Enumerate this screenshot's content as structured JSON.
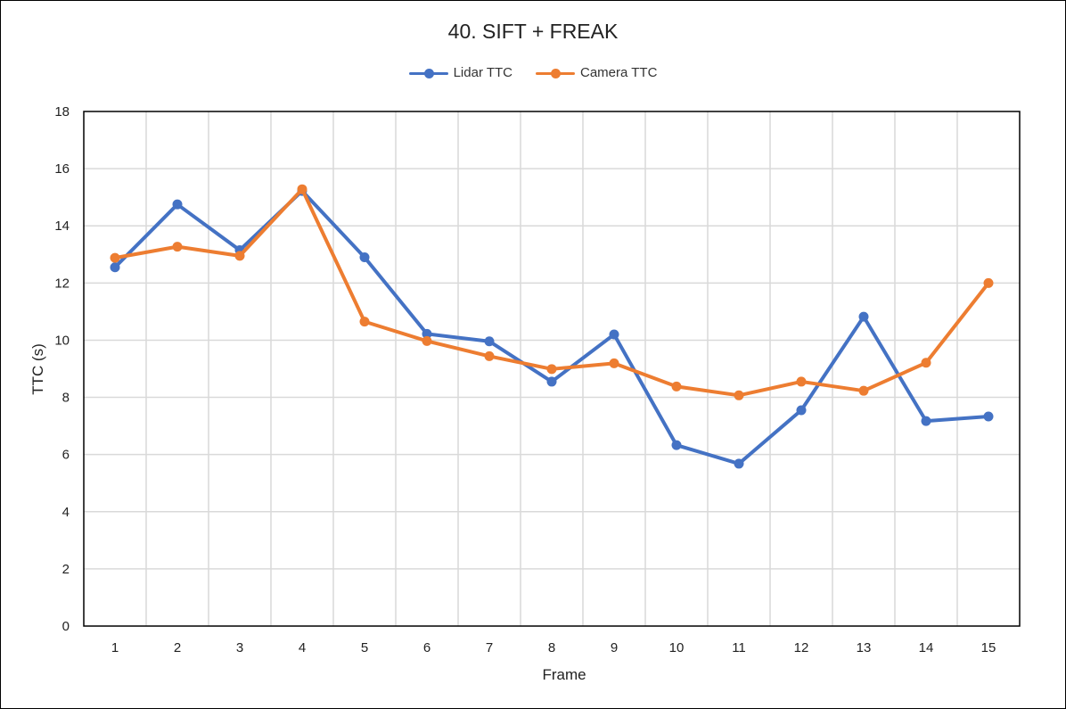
{
  "chart_data": {
    "type": "line",
    "title": "40. SIFT + FREAK",
    "xlabel": "Frame",
    "ylabel": "TTC (s)",
    "categories": [
      "1",
      "2",
      "3",
      "4",
      "5",
      "6",
      "7",
      "8",
      "9",
      "10",
      "11",
      "12",
      "13",
      "14",
      "15"
    ],
    "ylim": [
      0,
      18
    ],
    "yticks": [
      "0",
      "2",
      "4",
      "6",
      "8",
      "10",
      "12",
      "14",
      "16",
      "18"
    ],
    "grid": true,
    "legend_position": "top-center",
    "series": [
      {
        "name": "Lidar TTC",
        "color": "#4472C4",
        "values": [
          12.55,
          14.75,
          13.15,
          15.22,
          12.9,
          10.22,
          9.96,
          8.55,
          10.2,
          6.33,
          5.68,
          7.55,
          10.82,
          7.17,
          7.33
        ]
      },
      {
        "name": "Camera TTC",
        "color": "#ED7D31",
        "values": [
          12.88,
          13.27,
          12.95,
          15.28,
          10.65,
          9.97,
          9.44,
          8.99,
          9.19,
          8.38,
          8.07,
          8.55,
          8.23,
          9.21,
          12.0
        ]
      }
    ]
  }
}
